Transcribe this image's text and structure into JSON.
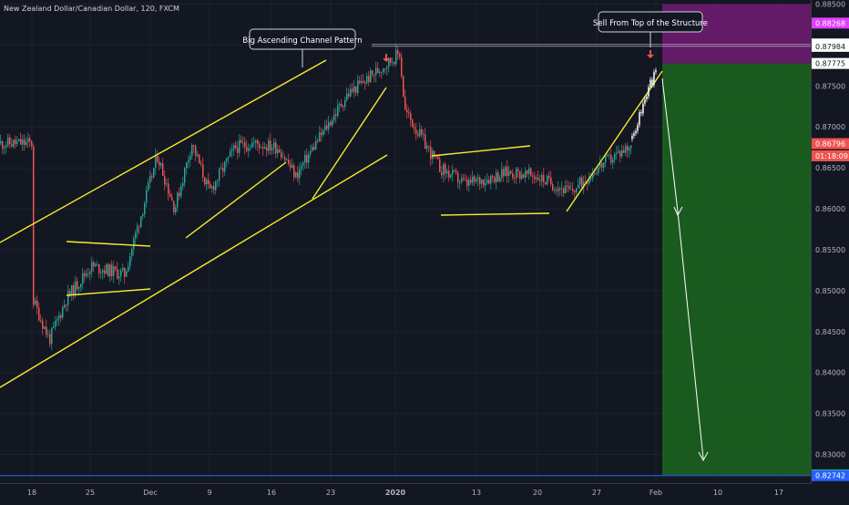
{
  "header": {
    "title": "New Zealand Dollar/Canadian Dollar, 120, FXCM"
  },
  "annotations": {
    "channel_label": "Big Ascending Channel Pattern",
    "sell_label": "Sell From Top of the Structure"
  },
  "colors": {
    "background": "#131722",
    "up_candle": "#26a69a",
    "down_candle": "#ef5350",
    "trendline": "#f5eb2c",
    "target_zone": "#1b5e20",
    "stop_zone": "#6a1b6e",
    "projection": "#ffffff",
    "marker": "#ef5350",
    "horizontal_line": "#2962ff"
  },
  "chart_data": {
    "type": "candlestick",
    "symbol": "NZDCAD",
    "timeframe": "120",
    "ylim": [
      0.8265,
      0.8855
    ],
    "x_ticks": [
      "18",
      "25",
      "Dec",
      "9",
      "16",
      "23",
      "2020",
      "13",
      "20",
      "27",
      "Feb",
      "10",
      "17"
    ],
    "y_ticks": [
      "0.88500",
      "0.88000",
      "0.87500",
      "0.87000",
      "0.86500",
      "0.86000",
      "0.85500",
      "0.85000",
      "0.84500",
      "0.84000",
      "0.83500",
      "0.83000"
    ],
    "price_labels": [
      {
        "label": "0.88268",
        "value": 0.88268,
        "kind": "stop"
      },
      {
        "label": "0.88013",
        "value": 0.88013,
        "kind": "level"
      },
      {
        "label": "0.87984",
        "value": 0.87984,
        "kind": "level"
      },
      {
        "label": "0.87775",
        "value": 0.87775,
        "kind": "entry"
      },
      {
        "label": "0.86796",
        "value": 0.86796,
        "kind": "last"
      },
      {
        "label": "01:18:09",
        "value": 0.86647,
        "kind": "countdown"
      },
      {
        "label": "0.82750",
        "value": 0.8275,
        "kind": "target"
      },
      {
        "label": "0.82742",
        "value": 0.82742,
        "kind": "line"
      }
    ],
    "price_path": [
      [
        "18",
        0.849
      ],
      [
        "20",
        0.844
      ],
      [
        "22",
        0.849
      ],
      [
        "25",
        0.853
      ],
      [
        "27",
        0.8525
      ],
      [
        "29",
        0.852
      ],
      [
        "Dec 2",
        0.8665
      ],
      [
        "Dec 4",
        0.86
      ],
      [
        "Dec 6",
        0.868
      ],
      [
        "Dec 8",
        0.862
      ],
      [
        "Dec 11",
        0.8675
      ],
      [
        "Dec 13",
        0.868
      ],
      [
        "Dec 16",
        0.8675
      ],
      [
        "Dec 18",
        0.864
      ],
      [
        "Dec 20",
        0.8675
      ],
      [
        "Dec 24",
        0.874
      ],
      [
        "Dec 30",
        0.879
      ],
      [
        "Jan 2",
        0.872
      ],
      [
        "Jan 6",
        0.865
      ],
      [
        "Jan 9",
        0.863
      ],
      [
        "Jan 14",
        0.8645
      ],
      [
        "Jan 17",
        0.864
      ],
      [
        "Jan 21",
        0.862
      ],
      [
        "Jan 24",
        0.865
      ],
      [
        "Jan 27",
        0.8672
      ],
      [
        "Jan 28",
        0.868
      ]
    ],
    "projected_path": [
      [
        "Jan 28",
        0.8685
      ],
      [
        "Jan 29",
        0.872
      ],
      [
        "Jan 30",
        0.875
      ],
      [
        "Jan 31",
        0.8775
      ],
      [
        "Feb 1",
        0.8798
      ]
    ],
    "trade_setup": {
      "side": "short",
      "entry": 0.87775,
      "stop": 0.88268,
      "target": 0.8275
    }
  }
}
